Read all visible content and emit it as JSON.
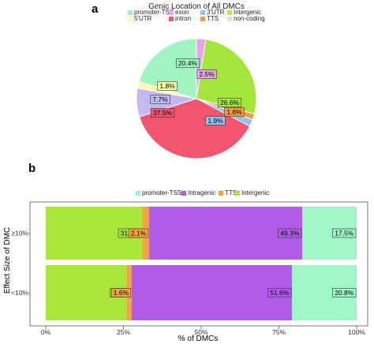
{
  "panels": {
    "a": "a",
    "b": "b"
  },
  "chart_data": [
    {
      "type": "pie",
      "title": "Genic Location of All DMCs",
      "legend": [
        {
          "name": "promoter-TSS",
          "color": "#98f5c2"
        },
        {
          "name": "exon",
          "color": "#f5a3e9"
        },
        {
          "name": "3'UTR",
          "color": "#9dbff2"
        },
        {
          "name": "Intergenic",
          "color": "#b3ee3a"
        },
        {
          "name": "5'UTR",
          "color": "#ffff9f"
        },
        {
          "name": "intron",
          "color": "#f0587a"
        },
        {
          "name": "TTS",
          "color": "#f59a3c"
        },
        {
          "name": "non-coding",
          "color": "#f8d2e4"
        }
      ],
      "slices": [
        {
          "name": "exon",
          "value": 2.5,
          "label": "2.5%",
          "color": "#e7a4ea"
        },
        {
          "name": "Intergenic",
          "value": 26.6,
          "label": "26.6%",
          "color": "#a4e63c"
        },
        {
          "name": "TTS",
          "value": 1.6,
          "label": "1.6%",
          "color": "#f39b3e"
        },
        {
          "name": "3'UTR",
          "value": 1.9,
          "label": "1.9%",
          "color": "#8fc2ef"
        },
        {
          "name": "intron",
          "value": 37.5,
          "label": "37.5%",
          "color": "#f2566f"
        },
        {
          "name": "non-coding",
          "value": 7.7,
          "label": "7.7%",
          "color": "#c3b8ef"
        },
        {
          "name": "5'UTR",
          "value": 1.8,
          "label": "1.8%",
          "color": "#fbfba6"
        },
        {
          "name": "promoter-TSS",
          "value": 20.4,
          "label": "20.4%",
          "color": "#9ff4c0"
        }
      ]
    },
    {
      "type": "bar",
      "orientation": "horizontal",
      "stacked": true,
      "legend": [
        {
          "name": "promoter-TSS",
          "color": "#9ff6c6"
        },
        {
          "name": "Intragenic",
          "color": "#b15ce8"
        },
        {
          "name": "TTS",
          "color": "#f4a340"
        },
        {
          "name": "Intergenic",
          "color": "#aae63a"
        }
      ],
      "categories": [
        "≥10%",
        "<10%"
      ],
      "series": [
        {
          "name": "Intergenic",
          "color": "#aae63a",
          "values": [
            31.1,
            26.0
          ],
          "labels": [
            "31.1%",
            "26%"
          ]
        },
        {
          "name": "TTS",
          "color": "#f4a340",
          "values": [
            2.1,
            1.6
          ],
          "labels": [
            "2.1%",
            "1.6%"
          ]
        },
        {
          "name": "Intragenic",
          "color": "#b15ce8",
          "values": [
            49.3,
            51.6
          ],
          "labels": [
            "49.3%",
            "51.6%"
          ]
        },
        {
          "name": "promoter-TSS",
          "color": "#9ff6c6",
          "values": [
            17.5,
            20.8
          ],
          "labels": [
            "17.5%",
            "20.8%"
          ]
        }
      ],
      "xlim": [
        0,
        100
      ],
      "xticks": [
        "0%",
        "25%",
        "50%",
        "75%",
        "100%"
      ],
      "xlabel": "% of DMCs",
      "ylabel": "Effect Size of DMC"
    }
  ]
}
